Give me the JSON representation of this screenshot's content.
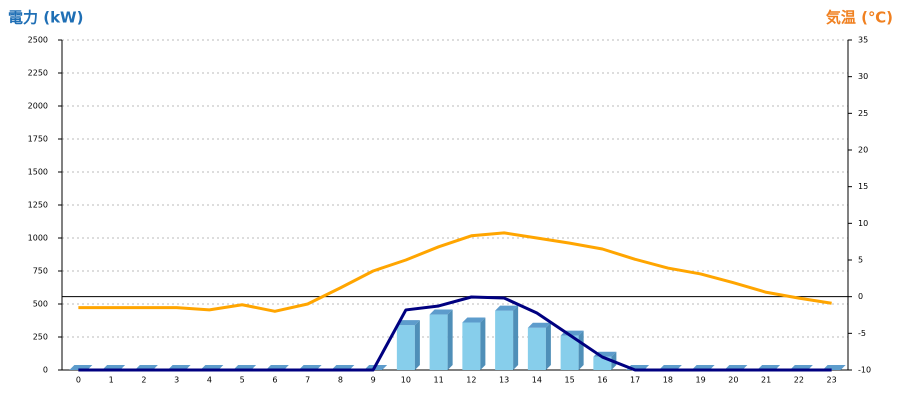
{
  "chart_data": {
    "type": "bar-line",
    "y_label": "電力 (kW)",
    "y2_label": "気温 (℃)",
    "categories": [
      "0",
      "1",
      "2",
      "3",
      "4",
      "5",
      "6",
      "7",
      "8",
      "9",
      "10",
      "11",
      "12",
      "13",
      "14",
      "15",
      "16",
      "17",
      "18",
      "19",
      "20",
      "21",
      "22",
      "23"
    ],
    "series": [
      {
        "kind": "bar",
        "color": "#87ceeb",
        "values": [
          0,
          0,
          0,
          0,
          0,
          0,
          0,
          0,
          0,
          0,
          340,
          420,
          360,
          450,
          320,
          260,
          100,
          0,
          0,
          0,
          0,
          0,
          0,
          0
        ]
      },
      {
        "kind": "line",
        "color": "#000080",
        "values": [
          0,
          0,
          0,
          0,
          0,
          0,
          0,
          0,
          0,
          0,
          455,
          485,
          553,
          545,
          432,
          265,
          98,
          0,
          0,
          0,
          0,
          0,
          0,
          0
        ]
      },
      {
        "kind": "line",
        "axis": "y2",
        "color": "#ffa500",
        "values": [
          -1.5,
          -1.5,
          -1.5,
          -1.5,
          -1.8,
          -1.1,
          -2.0,
          -1.0,
          1.2,
          3.5,
          5.0,
          6.8,
          8.3,
          8.7,
          8.0,
          7.3,
          6.5,
          5.1,
          3.9,
          3.1,
          1.9,
          0.6,
          -0.2,
          -0.9
        ]
      }
    ],
    "ylim": [
      0,
      2500
    ],
    "yticks": [
      0,
      250,
      500,
      750,
      1000,
      1250,
      1500,
      1750,
      2000,
      2250,
      2500
    ],
    "y2lim": [
      -10,
      35
    ],
    "y2ticks": [
      -10,
      -5,
      0,
      5,
      10,
      15,
      20,
      25,
      30,
      35
    ],
    "grid": true
  }
}
